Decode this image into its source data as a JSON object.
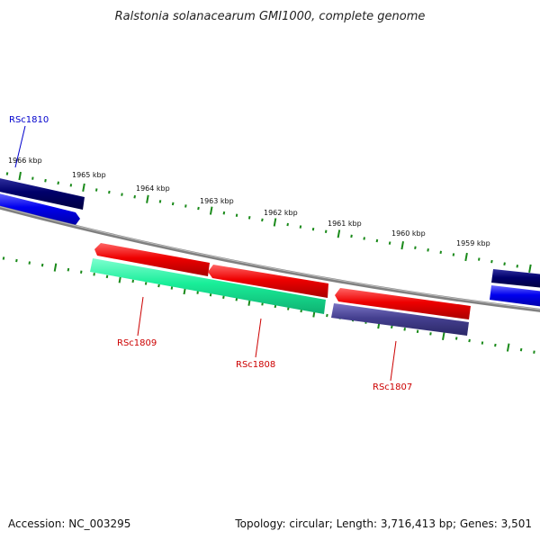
{
  "title": "Ralstonia solanacearum GMI1000, complete genome",
  "footer": {
    "accession": "Accession: NC_003295",
    "summary": "Topology: circular; Length: 3,716,413 bp; Genes: 3,501"
  },
  "ruler": {
    "unit": "kbp",
    "labels": [
      "1966 kbp",
      "1965 kbp",
      "1964 kbp",
      "1963 kbp",
      "1962 kbp",
      "1961 kbp",
      "1960 kbp",
      "1959 kbp"
    ],
    "color": "#1a8a1a"
  },
  "genes": [
    {
      "name": "RSc1810",
      "strand": "forward",
      "label_color": "#0000cc"
    },
    {
      "name": "RSc1809",
      "strand": "reverse",
      "label_color": "#cc0000"
    },
    {
      "name": "RSc1808",
      "strand": "reverse",
      "label_color": "#cc0000"
    },
    {
      "name": "RSc1807",
      "strand": "reverse",
      "label_color": "#cc0000"
    }
  ],
  "colors": {
    "backbone": "#808080",
    "forward_strand_dark": "#00006b",
    "forward_strand": "#0000ee",
    "reverse_strand_red": "#ee0000",
    "reverse_strand_green": "#19ee99",
    "reverse_strand_slate": "#454090"
  }
}
